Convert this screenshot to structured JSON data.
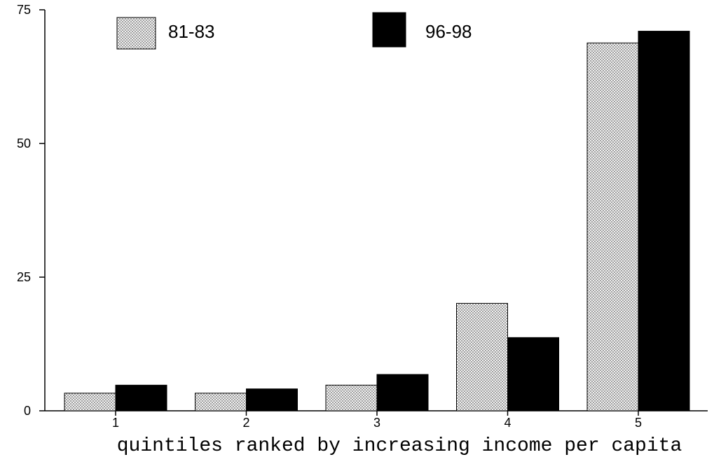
{
  "chart_data": {
    "type": "bar",
    "title": "",
    "xlabel": "quintiles ranked by increasing income per capita",
    "ylabel": "",
    "categories": [
      "1",
      "2",
      "3",
      "4",
      "5"
    ],
    "series": [
      {
        "name": "81-83",
        "values": [
          3.3,
          3.3,
          4.8,
          20.1,
          68.8
        ],
        "color": "#dcdcdc",
        "pattern": "dotted"
      },
      {
        "name": "96-98",
        "values": [
          4.8,
          4.1,
          6.8,
          13.7,
          71.0
        ],
        "color": "#000000",
        "pattern": "solid"
      }
    ],
    "ylim": [
      0,
      75
    ],
    "yticks": [
      "0",
      "25",
      "50",
      "75"
    ],
    "grid": false,
    "legend": "top"
  }
}
